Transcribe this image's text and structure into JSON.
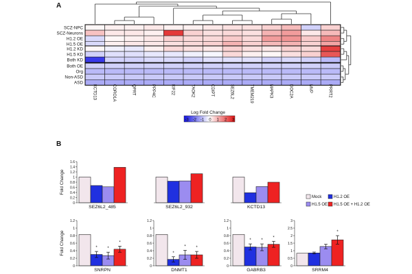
{
  "panels": {
    "a": "A",
    "b": "B"
  },
  "colorbar": {
    "title": "Log Fold Change",
    "ticks": [
      "-3",
      "-2",
      "-1",
      "0",
      "1",
      "2",
      "3"
    ],
    "min": -3,
    "max": 3
  },
  "legend": {
    "items": [
      "Mock",
      "H1.2 OE",
      "H1.5 OE",
      "H1.5 OE + H1.2 OE"
    ]
  },
  "colors": {
    "mock": "#f2e6ec",
    "h12": "#2030e0",
    "h15": "#9b8cf0",
    "combo": "#ee2222",
    "neg": "#1a1ae6",
    "pos": "#e01a1a"
  },
  "chart_data": [
    {
      "type": "heatmap",
      "title": "Log Fold Change",
      "columns": [
        "KCTD13",
        "CORO1A",
        "QPRT",
        "PPP4C",
        "KIF22",
        "TAOK2",
        "CDIPT",
        "SEZ6L2",
        "TMEM219",
        "MAPK3",
        "DOC2A",
        "MVP",
        "PRRT2"
      ],
      "row_groups": [
        [
          "SCZ-NPC",
          "SCZ-Neurons",
          "H1.2 OE",
          "H1.5 OE"
        ],
        [
          "H1.2 KD",
          "H1.5 KD",
          "Both KD"
        ],
        [
          "Both OE",
          "Org",
          "Non-ASD",
          "ASD"
        ]
      ],
      "rows": [
        "SCZ-NPC",
        "SCZ-Neurons",
        "H1.2 OE",
        "H1.5 OE",
        "H1.2 KD",
        "H1.5 KD",
        "Both KD",
        "Both OE",
        "Org",
        "Non-ASD",
        "ASD"
      ],
      "values": [
        [
          0.1,
          0.2,
          0.2,
          0.3,
          0.2,
          0.2,
          0.3,
          0.4,
          0.4,
          0.6,
          0.9,
          -0.6,
          0.6
        ],
        [
          0.8,
          0.3,
          0.3,
          0.2,
          2.6,
          0.6,
          0.4,
          0.5,
          0.4,
          1.0,
          1.3,
          0.3,
          0.9
        ],
        [
          -0.5,
          0.1,
          0.2,
          0.3,
          0.6,
          0.5,
          0.5,
          0.7,
          0.5,
          1.3,
          1.4,
          0.7,
          1.6
        ],
        [
          -0.5,
          0.2,
          0.3,
          0.3,
          0.4,
          0.5,
          0.6,
          1.0,
          0.6,
          0.9,
          1.0,
          0.6,
          1.2
        ],
        [
          0.1,
          -0.2,
          -0.3,
          0.2,
          0.5,
          0.4,
          0.3,
          0.6,
          0.4,
          0.3,
          0.6,
          0.5,
          2.5
        ],
        [
          -0.6,
          -0.4,
          -0.4,
          -0.3,
          -0.3,
          -0.2,
          -0.1,
          0.5,
          0.2,
          0.1,
          0.4,
          0.6,
          2.2
        ],
        [
          -2.6,
          -0.6,
          -0.6,
          -0.5,
          -0.5,
          -0.6,
          -0.4,
          -0.4,
          -0.4,
          -0.6,
          -0.5,
          -0.6,
          -0.9
        ],
        [
          -0.6,
          -0.6,
          -0.6,
          -0.6,
          -0.6,
          -0.6,
          -0.6,
          -0.6,
          -0.6,
          -0.6,
          -0.6,
          -0.6,
          -0.7
        ],
        [
          -0.9,
          -0.9,
          -0.9,
          -0.9,
          -0.9,
          -0.9,
          -0.9,
          -0.9,
          -0.9,
          -0.9,
          -0.9,
          -0.9,
          -0.9
        ],
        [
          -0.7,
          -0.7,
          -0.7,
          -0.7,
          -0.7,
          -0.7,
          -0.7,
          -0.7,
          -0.7,
          -0.7,
          -0.7,
          -0.7,
          -0.7
        ],
        [
          -1.1,
          -1.1,
          -1.1,
          -1.1,
          -1.1,
          -1.1,
          -1.1,
          -1.1,
          -1.1,
          -1.1,
          -1.1,
          -1.1,
          -1.1
        ]
      ],
      "range": [
        -3,
        3
      ]
    },
    {
      "type": "bar",
      "title": "SEZ6L2_485",
      "ylabel": "Fold Change",
      "ylim": [
        0,
        1.6
      ],
      "yticks": [
        "0",
        "0.2",
        "0.4",
        "0.6",
        "0.8",
        "1",
        "1.2",
        "1.4",
        "1.6"
      ],
      "categories": [
        "Mock",
        "H1.2 OE",
        "H1.5 OE",
        "H1.5 OE + H1.2 OE"
      ],
      "values": [
        1.0,
        0.67,
        0.62,
        1.38
      ],
      "errors": [
        0,
        0,
        0,
        0
      ],
      "stars": [
        "",
        "",
        "",
        ""
      ]
    },
    {
      "type": "bar",
      "title": "SEZ6L2_932",
      "ylim": [
        0,
        1.6
      ],
      "yticks": [],
      "categories": [
        "Mock",
        "H1.2 OE",
        "H1.5 OE",
        "H1.5 OE + H1.2 OE"
      ],
      "values": [
        1.0,
        0.84,
        0.85,
        1.13
      ],
      "errors": [
        0,
        0,
        0,
        0
      ],
      "stars": [
        "",
        "",
        "",
        ""
      ]
    },
    {
      "type": "bar",
      "title": "KCTD13",
      "ylim": [
        0,
        1.6
      ],
      "yticks": [],
      "categories": [
        "Mock",
        "H1.2 OE",
        "H1.5 OE",
        "H1.5 OE + H1.2 OE"
      ],
      "values": [
        1.0,
        0.39,
        0.63,
        0.8
      ],
      "errors": [
        0,
        0,
        0,
        0
      ],
      "stars": [
        "",
        "",
        "",
        ""
      ]
    },
    {
      "type": "bar",
      "title": "SNRPN",
      "ylabel": "Fold Change",
      "ylim": [
        0,
        1.2
      ],
      "yticks": [
        "0",
        "0.2",
        "0.4",
        "0.6",
        "0.8",
        "1",
        "1.2"
      ],
      "categories": [
        "Mock",
        "H1.2 OE",
        "H1.5 OE",
        "H1.5 OE + H1.2 OE"
      ],
      "values": [
        0.83,
        0.3,
        0.27,
        0.44
      ],
      "errors": [
        0,
        0.08,
        0.09,
        0.08
      ],
      "stars": [
        "",
        "*",
        "*",
        "*"
      ]
    },
    {
      "type": "bar",
      "title": "DNMT1",
      "ylim": [
        0,
        1.2
      ],
      "yticks": [
        "0",
        "0.2",
        "0.4",
        "0.6",
        "0.8",
        "1",
        "1.2"
      ],
      "categories": [
        "Mock",
        "H1.2 OE",
        "H1.5 OE",
        "H1.5 OE + H1.2 OE"
      ],
      "values": [
        0.83,
        0.17,
        0.29,
        0.29
      ],
      "errors": [
        0,
        0.07,
        0.12,
        0.09
      ],
      "stars": [
        "",
        "*",
        "*",
        "*"
      ]
    },
    {
      "type": "bar",
      "title": "GABRB3",
      "ylim": [
        0,
        1.2
      ],
      "yticks": [
        "0",
        "0.2",
        "0.4",
        "0.6",
        "0.8",
        "1",
        "1.2"
      ],
      "categories": [
        "Mock",
        "H1.2 OE",
        "H1.5 OE",
        "H1.5 OE + H1.2 OE"
      ],
      "values": [
        0.83,
        0.5,
        0.49,
        0.57
      ],
      "errors": [
        0,
        0.08,
        0.09,
        0.08
      ],
      "stars": [
        "",
        "*",
        "*",
        "*"
      ]
    },
    {
      "type": "bar",
      "title": "SRRM4",
      "ylim": [
        0,
        3
      ],
      "yticks": [
        "0",
        "0.5",
        "1",
        "1.5",
        "2",
        "2.5",
        "3"
      ],
      "categories": [
        "Mock",
        "H1.2 OE",
        "H1.5 OE",
        "H1.5 OE + H1.2 OE"
      ],
      "values": [
        0.83,
        0.85,
        1.28,
        1.72
      ],
      "errors": [
        0,
        0.06,
        0.15,
        0.28
      ],
      "stars": [
        "",
        "",
        "",
        "*"
      ]
    }
  ]
}
